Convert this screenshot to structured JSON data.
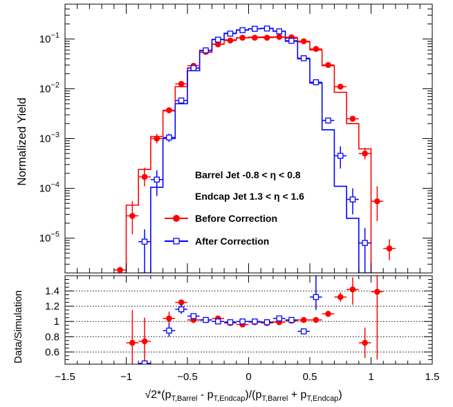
{
  "chart_data": [
    {
      "type": "scatter",
      "panel": "main",
      "yscale": "log",
      "ylabel": "Normalized Yield",
      "xlabel_parts": [
        "√2*(p",
        "T,Barrel",
        " - p",
        "T,Endcap",
        ")/(p",
        "T,Barrel",
        " + p",
        "T,Endcap",
        ")"
      ],
      "xlim": [
        -1.5,
        1.5
      ],
      "ylim": [
        2e-06,
        0.5
      ],
      "xticks": [
        "-1.5",
        "-1",
        "-0.5",
        "0",
        "0.5",
        "1",
        "1.5"
      ],
      "yticks": [
        {
          "value": 1e-05,
          "base": "10",
          "exp": "-5"
        },
        {
          "value": 0.0001,
          "base": "10",
          "exp": "-4"
        },
        {
          "value": 0.001,
          "base": "10",
          "exp": "-3"
        },
        {
          "value": 0.01,
          "base": "10",
          "exp": "-2"
        },
        {
          "value": 0.1,
          "base": "10",
          "exp": "-1"
        }
      ],
      "annotations": [
        "Barrel Jet -0.8 < η < 0.8",
        "Endcap Jet 1.3 < η < 1.6"
      ],
      "series": [
        {
          "name": "Before Correction",
          "color": "#ff0000",
          "marker": "filled-circle",
          "points": [
            {
              "x": -1.05,
              "y": 2.3e-06,
              "lo": 2e-06,
              "hi": 2.6e-06
            },
            {
              "x": -0.95,
              "y": 2.8e-05,
              "lo": 1.2e-05,
              "hi": 5.5e-05
            },
            {
              "x": -0.85,
              "y": 0.00017,
              "lo": 0.00011,
              "hi": 0.00026
            },
            {
              "x": -0.75,
              "y": 0.001,
              "lo": 0.0008,
              "hi": 0.00125
            },
            {
              "x": -0.65,
              "y": 0.0037,
              "lo": 0.0034,
              "hi": 0.004
            },
            {
              "x": -0.55,
              "y": 0.0125,
              "lo": 0.012,
              "hi": 0.013
            },
            {
              "x": -0.45,
              "y": 0.029,
              "lo": 0.028,
              "hi": 0.03
            },
            {
              "x": -0.35,
              "y": 0.055,
              "lo": 0.053,
              "hi": 0.057
            },
            {
              "x": -0.25,
              "y": 0.078,
              "lo": 0.076,
              "hi": 0.08
            },
            {
              "x": -0.15,
              "y": 0.093,
              "lo": 0.091,
              "hi": 0.095
            },
            {
              "x": -0.05,
              "y": 0.106,
              "lo": 0.104,
              "hi": 0.108
            },
            {
              "x": 0.05,
              "y": 0.106,
              "lo": 0.104,
              "hi": 0.108
            },
            {
              "x": 0.15,
              "y": 0.106,
              "lo": 0.104,
              "hi": 0.108
            },
            {
              "x": 0.25,
              "y": 0.11,
              "lo": 0.108,
              "hi": 0.112
            },
            {
              "x": 0.35,
              "y": 0.108,
              "lo": 0.106,
              "hi": 0.11
            },
            {
              "x": 0.45,
              "y": 0.09,
              "lo": 0.088,
              "hi": 0.092
            },
            {
              "x": 0.55,
              "y": 0.063,
              "lo": 0.061,
              "hi": 0.065
            },
            {
              "x": 0.65,
              "y": 0.03,
              "lo": 0.029,
              "hi": 0.031
            },
            {
              "x": 0.75,
              "y": 0.011,
              "lo": 0.0105,
              "hi": 0.0115
            },
            {
              "x": 0.85,
              "y": 0.0025,
              "lo": 0.0023,
              "hi": 0.0027
            },
            {
              "x": 0.95,
              "y": 0.0005,
              "lo": 0.00038,
              "hi": 0.00065
            },
            {
              "x": 1.05,
              "y": 5.5e-05,
              "lo": 2.2e-05,
              "hi": 0.00011
            },
            {
              "x": 1.15,
              "y": 6.2e-06,
              "lo": 3.6e-06,
              "hi": 9.5e-06
            }
          ],
          "hist": [
            {
              "lo": -1.1,
              "hi": -1.0,
              "y": 2e-06
            },
            {
              "lo": -1.0,
              "hi": -0.9,
              "y": 4.6e-05
            },
            {
              "lo": -0.9,
              "hi": -0.8,
              "y": 0.00024
            },
            {
              "lo": -0.8,
              "hi": -0.7,
              "y": 0.0011
            },
            {
              "lo": -0.7,
              "hi": -0.6,
              "y": 0.0036
            },
            {
              "lo": -0.6,
              "hi": -0.5,
              "y": 0.011
            },
            {
              "lo": -0.5,
              "hi": -0.4,
              "y": 0.026
            },
            {
              "lo": -0.4,
              "hi": -0.3,
              "y": 0.054
            },
            {
              "lo": -0.3,
              "hi": -0.2,
              "y": 0.079
            },
            {
              "lo": -0.2,
              "hi": -0.1,
              "y": 0.096
            },
            {
              "lo": -0.1,
              "hi": 0.0,
              "y": 0.105
            },
            {
              "lo": 0.0,
              "hi": 0.1,
              "y": 0.109
            },
            {
              "lo": 0.1,
              "hi": 0.2,
              "y": 0.11
            },
            {
              "lo": 0.2,
              "hi": 0.3,
              "y": 0.108
            },
            {
              "lo": 0.3,
              "hi": 0.4,
              "y": 0.104
            },
            {
              "lo": 0.4,
              "hi": 0.5,
              "y": 0.087
            },
            {
              "lo": 0.5,
              "hi": 0.6,
              "y": 0.06
            },
            {
              "lo": 0.6,
              "hi": 0.7,
              "y": 0.029
            },
            {
              "lo": 0.7,
              "hi": 0.8,
              "y": 0.0085
            },
            {
              "lo": 0.8,
              "hi": 0.9,
              "y": 0.002
            },
            {
              "lo": 0.9,
              "hi": 1.0,
              "y": 0.00062
            },
            {
              "lo": 1.0,
              "hi": 1.1,
              "y": 2e-06
            }
          ]
        },
        {
          "name": "After Correction",
          "color": "#0000ff",
          "marker": "open-square",
          "points": [
            {
              "x": -0.85,
              "y": 8.5e-06,
              "lo": 2e-06,
              "hi": 1.5e-05
            },
            {
              "x": -0.75,
              "y": 0.00015,
              "lo": 7e-05,
              "hi": 0.00023
            },
            {
              "x": -0.65,
              "y": 0.00105,
              "lo": 0.00085,
              "hi": 0.00125
            },
            {
              "x": -0.55,
              "y": 0.0058,
              "lo": 0.0054,
              "hi": 0.0062
            },
            {
              "x": -0.45,
              "y": 0.026,
              "lo": 0.025,
              "hi": 0.027
            },
            {
              "x": -0.35,
              "y": 0.059,
              "lo": 0.057,
              "hi": 0.061
            },
            {
              "x": -0.25,
              "y": 0.097,
              "lo": 0.095,
              "hi": 0.099
            },
            {
              "x": -0.15,
              "y": 0.128,
              "lo": 0.126,
              "hi": 0.13
            },
            {
              "x": -0.05,
              "y": 0.15,
              "lo": 0.148,
              "hi": 0.152
            },
            {
              "x": 0.05,
              "y": 0.16,
              "lo": 0.158,
              "hi": 0.162
            },
            {
              "x": 0.15,
              "y": 0.162,
              "lo": 0.16,
              "hi": 0.164
            },
            {
              "x": 0.25,
              "y": 0.142,
              "lo": 0.14,
              "hi": 0.144
            },
            {
              "x": 0.35,
              "y": 0.092,
              "lo": 0.09,
              "hi": 0.094
            },
            {
              "x": 0.45,
              "y": 0.041,
              "lo": 0.04,
              "hi": 0.042
            },
            {
              "x": 0.55,
              "y": 0.0135,
              "lo": 0.013,
              "hi": 0.014
            },
            {
              "x": 0.65,
              "y": 0.0023,
              "lo": 0.002,
              "hi": 0.0026
            },
            {
              "x": 0.75,
              "y": 0.00045,
              "lo": 0.00025,
              "hi": 0.0007
            },
            {
              "x": 0.85,
              "y": 6e-05,
              "lo": 3e-05,
              "hi": 0.0001
            },
            {
              "x": 0.95,
              "y": 8e-06,
              "lo": 2e-06,
              "hi": 1.6e-05
            }
          ],
          "hist": [
            {
              "lo": -0.9,
              "hi": -0.8,
              "y": 2e-06
            },
            {
              "lo": -0.8,
              "hi": -0.7,
              "y": 0.000105
            },
            {
              "lo": -0.7,
              "hi": -0.6,
              "y": 0.001
            },
            {
              "lo": -0.6,
              "hi": -0.5,
              "y": 0.005
            },
            {
              "lo": -0.5,
              "hi": -0.4,
              "y": 0.023
            },
            {
              "lo": -0.4,
              "hi": -0.3,
              "y": 0.059
            },
            {
              "lo": -0.3,
              "hi": -0.2,
              "y": 0.098
            },
            {
              "lo": -0.2,
              "hi": -0.1,
              "y": 0.13
            },
            {
              "lo": -0.1,
              "hi": 0.0,
              "y": 0.152
            },
            {
              "lo": 0.0,
              "hi": 0.1,
              "y": 0.16
            },
            {
              "lo": 0.1,
              "hi": 0.2,
              "y": 0.163
            },
            {
              "lo": 0.2,
              "hi": 0.3,
              "y": 0.143
            },
            {
              "lo": 0.3,
              "hi": 0.4,
              "y": 0.09
            },
            {
              "lo": 0.4,
              "hi": 0.5,
              "y": 0.04
            },
            {
              "lo": 0.5,
              "hi": 0.6,
              "y": 0.013
            },
            {
              "lo": 0.6,
              "hi": 0.7,
              "y": 0.0015
            },
            {
              "lo": 0.7,
              "hi": 0.8,
              "y": 0.00011
            },
            {
              "lo": 0.8,
              "hi": 0.9,
              "y": 2.5e-05
            },
            {
              "lo": 0.9,
              "hi": 1.0,
              "y": 2e-06
            }
          ]
        }
      ]
    },
    {
      "type": "scatter",
      "panel": "ratio",
      "ylabel": "Data/Simulation",
      "xlim": [
        -1.5,
        1.5
      ],
      "ylim": [
        0.44,
        1.6
      ],
      "yticks": [
        "0.6",
        "0.8",
        "1",
        "1.2",
        "1.4"
      ],
      "gridlines_dotted": true,
      "series": [
        {
          "name": "Before Correction",
          "color": "#ff0000",
          "marker": "filled-circle",
          "points": [
            {
              "x": -0.95,
              "y": 0.72,
              "lo": 0.44,
              "hi": 1.15
            },
            {
              "x": -0.85,
              "y": 0.74,
              "lo": 0.44,
              "hi": 1.05
            },
            {
              "x": -0.65,
              "y": 1.04,
              "lo": 0.96,
              "hi": 1.13
            },
            {
              "x": -0.55,
              "y": 1.25,
              "lo": 1.21,
              "hi": 1.29
            },
            {
              "x": -0.45,
              "y": 1.02,
              "lo": 1.0,
              "hi": 1.04
            },
            {
              "x": -0.35,
              "y": 1.02,
              "lo": 1.0,
              "hi": 1.04
            },
            {
              "x": -0.25,
              "y": 1.04,
              "lo": 1.02,
              "hi": 1.06
            },
            {
              "x": -0.15,
              "y": 0.98,
              "lo": 0.97,
              "hi": 0.99
            },
            {
              "x": -0.05,
              "y": 0.96,
              "lo": 0.95,
              "hi": 0.97
            },
            {
              "x": 0.05,
              "y": 0.99,
              "lo": 0.98,
              "hi": 1.0
            },
            {
              "x": 0.15,
              "y": 0.98,
              "lo": 0.97,
              "hi": 0.99
            },
            {
              "x": 0.25,
              "y": 0.99,
              "lo": 0.98,
              "hi": 1.0
            },
            {
              "x": 0.35,
              "y": 1.01,
              "lo": 1.0,
              "hi": 1.02
            },
            {
              "x": 0.45,
              "y": 1.02,
              "lo": 1.01,
              "hi": 1.03
            },
            {
              "x": 0.55,
              "y": 1.02,
              "lo": 1.0,
              "hi": 1.04
            },
            {
              "x": 0.65,
              "y": 1.1,
              "lo": 1.06,
              "hi": 1.14
            },
            {
              "x": 0.75,
              "y": 1.32,
              "lo": 1.26,
              "hi": 1.38
            },
            {
              "x": 0.85,
              "y": 1.42,
              "lo": 1.22,
              "hi": 1.58
            },
            {
              "x": 0.95,
              "y": 0.72,
              "lo": 0.52,
              "hi": 0.92
            },
            {
              "x": 1.05,
              "y": 1.39,
              "lo": 0.5,
              "hi": 1.6
            }
          ]
        },
        {
          "name": "After Correction",
          "color": "#0000ff",
          "marker": "open-square",
          "points": [
            {
              "x": -0.85,
              "y": 0.45,
              "lo": 0.44,
              "hi": 0.47
            },
            {
              "x": -0.65,
              "y": 0.88,
              "lo": 0.8,
              "hi": 0.97
            },
            {
              "x": -0.55,
              "y": 1.16,
              "lo": 1.1,
              "hi": 1.22
            },
            {
              "x": -0.45,
              "y": 1.07,
              "lo": 1.04,
              "hi": 1.1
            },
            {
              "x": -0.35,
              "y": 1.02,
              "lo": 1.0,
              "hi": 1.04
            },
            {
              "x": -0.25,
              "y": 1.0,
              "lo": 0.99,
              "hi": 1.01
            },
            {
              "x": -0.15,
              "y": 0.99,
              "lo": 0.98,
              "hi": 1.0
            },
            {
              "x": -0.05,
              "y": 1.0,
              "lo": 0.99,
              "hi": 1.01
            },
            {
              "x": 0.05,
              "y": 1.0,
              "lo": 0.99,
              "hi": 1.01
            },
            {
              "x": 0.15,
              "y": 0.99,
              "lo": 0.98,
              "hi": 1.0
            },
            {
              "x": 0.25,
              "y": 1.04,
              "lo": 1.03,
              "hi": 1.05
            },
            {
              "x": 0.35,
              "y": 1.02,
              "lo": 1.0,
              "hi": 1.04
            },
            {
              "x": 0.45,
              "y": 0.87,
              "lo": 0.83,
              "hi": 0.91
            },
            {
              "x": 0.55,
              "y": 1.32,
              "lo": 1.15,
              "hi": 1.6
            }
          ]
        }
      ]
    }
  ]
}
